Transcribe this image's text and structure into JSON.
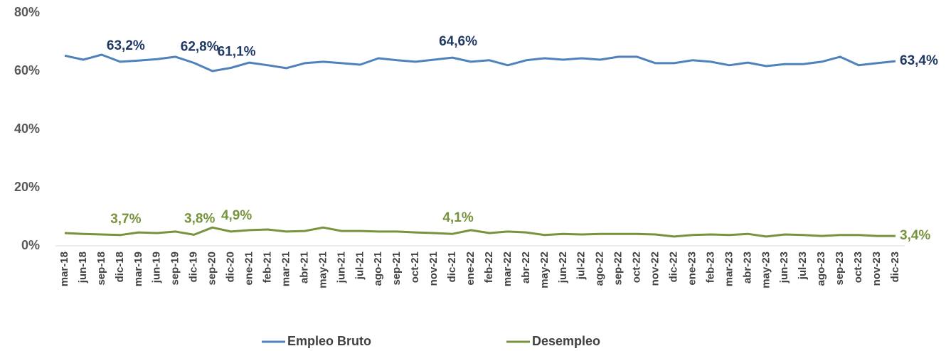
{
  "chart_data": {
    "type": "line",
    "categories": [
      "mar-18",
      "jun-18",
      "sep-18",
      "dic-18",
      "mar-19",
      "jun-19",
      "sep-19",
      "dic-19",
      "sep-20",
      "dic-20",
      "ene-21",
      "feb-21",
      "mar-21",
      "abr-21",
      "may-21",
      "jun-21",
      "jul-21",
      "ago-21",
      "sep-21",
      "oct-21",
      "nov-21",
      "dic-21",
      "ene-22",
      "feb-22",
      "mar-22",
      "abr-22",
      "may-22",
      "jun-22",
      "jul-22",
      "ago-22",
      "sep-22",
      "oct-22",
      "nov-22",
      "dic-22",
      "ene-23",
      "feb-23",
      "mar-23",
      "abr-23",
      "may-23",
      "jun-23",
      "jul-23",
      "ago-23",
      "sep-23",
      "oct-23",
      "nov-23",
      "dic-23"
    ],
    "series": [
      {
        "name": "Empleo Bruto",
        "color": "#4f81bd",
        "label_color": "#1f3864",
        "values": [
          65.3,
          63.9,
          65.6,
          63.2,
          63.6,
          64.1,
          64.9,
          62.8,
          60.0,
          61.1,
          62.9,
          62.0,
          61.0,
          62.7,
          63.2,
          62.7,
          62.2,
          64.4,
          63.7,
          63.2,
          63.9,
          64.6,
          63.2,
          63.7,
          62.0,
          63.7,
          64.4,
          63.9,
          64.4,
          63.9,
          64.9,
          64.9,
          62.7,
          62.7,
          63.7,
          63.2,
          62.0,
          62.9,
          61.7,
          62.4,
          62.4,
          63.2,
          64.9,
          62.0,
          62.7,
          63.4
        ],
        "value_labels": [
          null,
          null,
          null,
          "63,2%",
          null,
          null,
          null,
          "62,8%",
          null,
          "61,1%",
          null,
          null,
          null,
          null,
          null,
          null,
          null,
          null,
          null,
          null,
          null,
          "64,6%",
          null,
          null,
          null,
          null,
          null,
          null,
          null,
          null,
          null,
          null,
          null,
          null,
          null,
          null,
          null,
          null,
          null,
          null,
          null,
          null,
          null,
          null,
          null,
          "63,4%"
        ]
      },
      {
        "name": "Desempleo",
        "color": "#77933c",
        "label_color": "#77933c",
        "values": [
          4.4,
          4.1,
          3.9,
          3.7,
          4.6,
          4.4,
          4.9,
          3.8,
          6.3,
          4.9,
          5.4,
          5.6,
          4.9,
          5.1,
          6.3,
          5.1,
          5.1,
          4.9,
          4.9,
          4.6,
          4.4,
          4.1,
          5.4,
          4.4,
          4.9,
          4.6,
          3.7,
          4.1,
          3.9,
          4.1,
          4.1,
          4.1,
          3.9,
          3.2,
          3.7,
          3.9,
          3.7,
          4.1,
          3.2,
          3.9,
          3.7,
          3.4,
          3.7,
          3.7,
          3.4,
          3.4
        ],
        "value_labels": [
          null,
          null,
          null,
          "3,7%",
          null,
          null,
          null,
          "3,8%",
          null,
          "4,9%",
          null,
          null,
          null,
          null,
          null,
          null,
          null,
          null,
          null,
          null,
          null,
          "4,1%",
          null,
          null,
          null,
          null,
          null,
          null,
          null,
          null,
          null,
          null,
          null,
          null,
          null,
          null,
          null,
          null,
          null,
          null,
          null,
          null,
          null,
          null,
          null,
          "3,4%"
        ]
      }
    ],
    "ylim": [
      0,
      80
    ],
    "yticks": [
      {
        "value": 0,
        "label": "0%"
      },
      {
        "value": 20,
        "label": "20%"
      },
      {
        "value": 40,
        "label": "40%"
      },
      {
        "value": 60,
        "label": "60%"
      },
      {
        "value": 80,
        "label": "80%"
      }
    ],
    "grid": false,
    "legend": "bottom"
  }
}
